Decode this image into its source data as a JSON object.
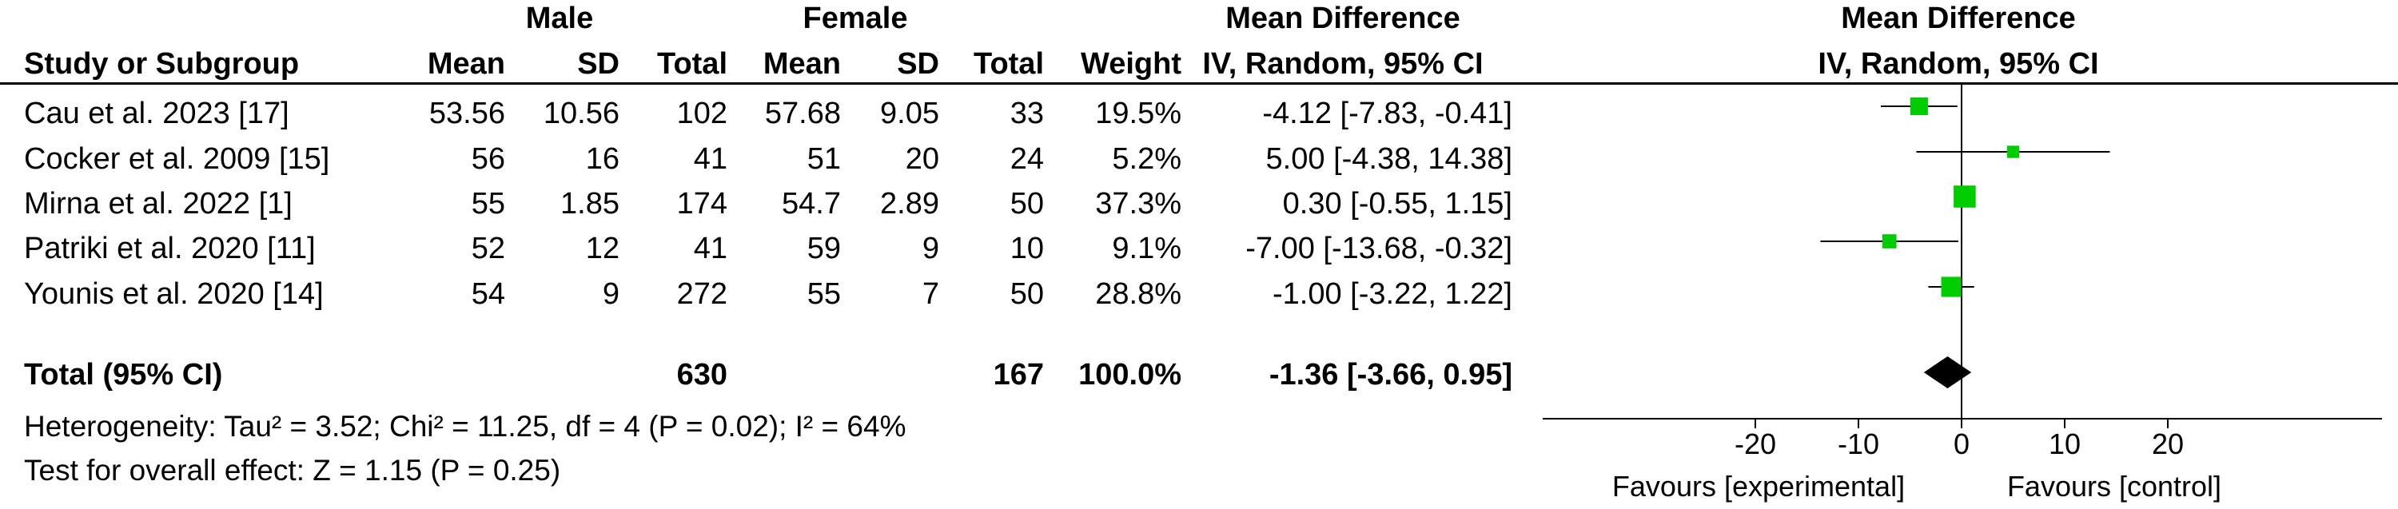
{
  "header": {
    "group_male": "Male",
    "group_female": "Female",
    "md_left_top": "Mean Difference",
    "md_left_sub": "IV, Random, 95% CI",
    "md_right_top": "Mean Difference",
    "md_right_sub": "IV, Random, 95% CI",
    "col_study": "Study or Subgroup",
    "col_mean_m": "Mean",
    "col_sd_m": "SD",
    "col_total_m": "Total",
    "col_mean_f": "Mean",
    "col_sd_f": "SD",
    "col_total_f": "Total",
    "col_weight": "Weight"
  },
  "rows": [
    {
      "study": "Cau et al. 2023 [17]",
      "mean_m": "53.56",
      "sd_m": "10.56",
      "total_m": "102",
      "mean_f": "57.68",
      "sd_f": "9.05",
      "total_f": "33",
      "weight": "19.5%",
      "ci": "-4.12 [-7.83, -0.41]"
    },
    {
      "study": "Cocker et al. 2009 [15]",
      "mean_m": "56",
      "sd_m": "16",
      "total_m": "41",
      "mean_f": "51",
      "sd_f": "20",
      "total_f": "24",
      "weight": "5.2%",
      "ci": "5.00 [-4.38, 14.38]"
    },
    {
      "study": "Mirna et al. 2022 [1]",
      "mean_m": "55",
      "sd_m": "1.85",
      "total_m": "174",
      "mean_f": "54.7",
      "sd_f": "2.89",
      "total_f": "50",
      "weight": "37.3%",
      "ci": "0.30 [-0.55, 1.15]"
    },
    {
      "study": "Patriki et al. 2020 [11]",
      "mean_m": "52",
      "sd_m": "12",
      "total_m": "41",
      "mean_f": "59",
      "sd_f": "9",
      "total_f": "10",
      "weight": "9.1%",
      "ci": "-7.00 [-13.68, -0.32]"
    },
    {
      "study": "Younis et al. 2020 [14]",
      "mean_m": "54",
      "sd_m": "9",
      "total_m": "272",
      "mean_f": "55",
      "sd_f": "7",
      "total_f": "50",
      "weight": "28.8%",
      "ci": "-1.00 [-3.22, 1.22]"
    }
  ],
  "total": {
    "label": "Total (95% CI)",
    "total_m": "630",
    "total_f": "167",
    "weight": "100.0%",
    "ci": "-1.36 [-3.66, 0.95]"
  },
  "footer": {
    "heterogeneity": "Heterogeneity: Tau² = 3.52; Chi² = 11.25, df = 4 (P = 0.02); I² = 64%",
    "overall": "Test for overall effect: Z = 1.15 (P = 0.25)"
  },
  "chart_data": {
    "type": "forest",
    "xlim": [
      -20,
      20
    ],
    "ticks": [
      "-20",
      "-10",
      "0",
      "10",
      "20"
    ],
    "tick_values": [
      -20,
      -10,
      0,
      10,
      20
    ],
    "xlabel_left": "Favours [experimental]",
    "xlabel_right": "Favours [control]",
    "studies": [
      {
        "name": "Cau et al. 2023 [17]",
        "md": -4.12,
        "lo": -7.83,
        "hi": -0.41,
        "weight": 19.5
      },
      {
        "name": "Cocker et al. 2009 [15]",
        "md": 5.0,
        "lo": -4.38,
        "hi": 14.38,
        "weight": 5.2
      },
      {
        "name": "Mirna et al. 2022 [1]",
        "md": 0.3,
        "lo": -0.55,
        "hi": 1.15,
        "weight": 37.3
      },
      {
        "name": "Patriki et al. 2020 [11]",
        "md": -7.0,
        "lo": -13.68,
        "hi": -0.32,
        "weight": 9.1
      },
      {
        "name": "Younis et al. 2020 [14]",
        "md": -1.0,
        "lo": -3.22,
        "hi": 1.22,
        "weight": 28.8
      }
    ],
    "pooled": {
      "md": -1.36,
      "lo": -3.66,
      "hi": 0.95
    },
    "colors": {
      "square": "#00cc00",
      "diamond": "#000000",
      "line": "#000000"
    }
  }
}
